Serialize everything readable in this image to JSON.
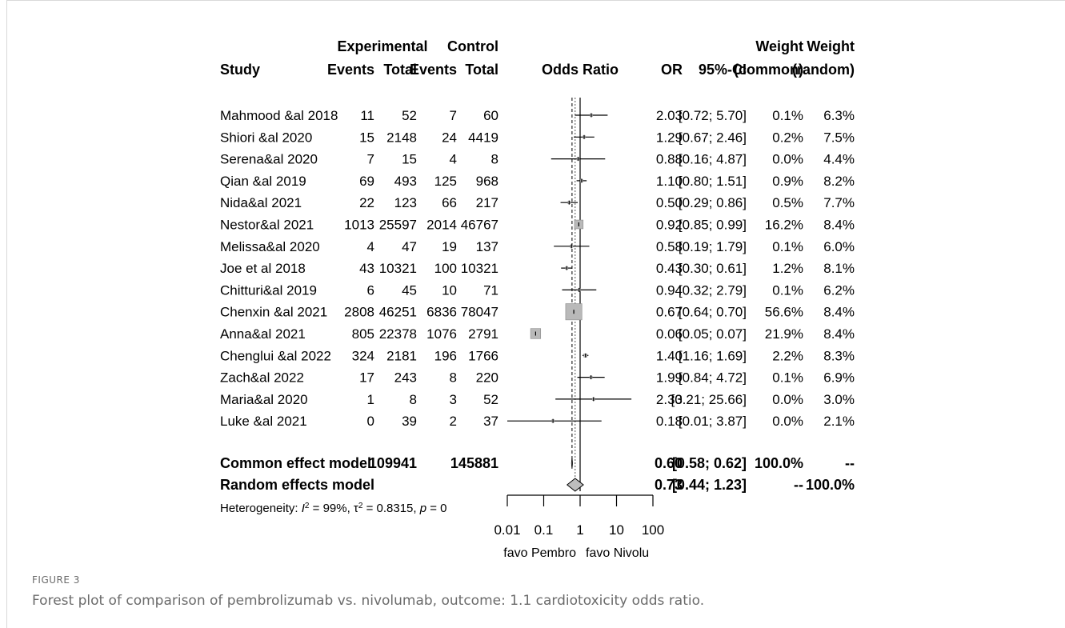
{
  "chart_data": {
    "type": "forest",
    "headers": {
      "study": "Study",
      "experimental": "Experimental",
      "control": "Control",
      "events": "Events",
      "total": "Total",
      "odds_ratio": "Odds Ratio",
      "or": "OR",
      "ci": "95%-CI",
      "weight": "Weight",
      "common": "(common)",
      "random": "(random)"
    },
    "studies": [
      {
        "name": "Mahmood &al 2018",
        "exp_events": "11",
        "exp_total": "52",
        "ctrl_events": "7",
        "ctrl_total": "60",
        "or": 2.03,
        "lo": 0.72,
        "hi": 5.7,
        "or_text": "2.03",
        "ci_text": "[0.72; 5.70]",
        "w_common": "0.1%",
        "w_random": "6.3%"
      },
      {
        "name": "Shiori &al 2020",
        "exp_events": "15",
        "exp_total": "2148",
        "ctrl_events": "24",
        "ctrl_total": "4419",
        "or": 1.29,
        "lo": 0.67,
        "hi": 2.46,
        "or_text": "1.29",
        "ci_text": "[0.67; 2.46]",
        "w_common": "0.2%",
        "w_random": "7.5%"
      },
      {
        "name": "Serena&al 2020",
        "exp_events": "7",
        "exp_total": "15",
        "ctrl_events": "4",
        "ctrl_total": "8",
        "or": 0.88,
        "lo": 0.16,
        "hi": 4.87,
        "or_text": "0.88",
        "ci_text": "[0.16; 4.87]",
        "w_common": "0.0%",
        "w_random": "4.4%"
      },
      {
        "name": "Qian &al 2019",
        "exp_events": "69",
        "exp_total": "493",
        "ctrl_events": "125",
        "ctrl_total": "968",
        "or": 1.1,
        "lo": 0.8,
        "hi": 1.51,
        "or_text": "1.10",
        "ci_text": "[0.80; 1.51]",
        "w_common": "0.9%",
        "w_random": "8.2%"
      },
      {
        "name": "Nida&al 2021",
        "exp_events": "22",
        "exp_total": "123",
        "ctrl_events": "66",
        "ctrl_total": "217",
        "or": 0.5,
        "lo": 0.29,
        "hi": 0.86,
        "or_text": "0.50",
        "ci_text": "[0.29; 0.86]",
        "w_common": "0.5%",
        "w_random": "7.7%"
      },
      {
        "name": "Nestor&al 2021",
        "exp_events": "1013",
        "exp_total": "25597",
        "ctrl_events": "2014",
        "ctrl_total": "46767",
        "or": 0.92,
        "lo": 0.85,
        "hi": 0.99,
        "or_text": "0.92",
        "ci_text": "[0.85; 0.99]",
        "w_common": "16.2%",
        "w_random": "8.4%"
      },
      {
        "name": "Melissa&al 2020",
        "exp_events": "4",
        "exp_total": "47",
        "ctrl_events": "19",
        "ctrl_total": "137",
        "or": 0.58,
        "lo": 0.19,
        "hi": 1.79,
        "or_text": "0.58",
        "ci_text": "[0.19; 1.79]",
        "w_common": "0.1%",
        "w_random": "6.0%"
      },
      {
        "name": "Joe et al 2018",
        "exp_events": "43",
        "exp_total": "10321",
        "ctrl_events": "100",
        "ctrl_total": "10321",
        "or": 0.43,
        "lo": 0.3,
        "hi": 0.61,
        "or_text": "0.43",
        "ci_text": "[0.30; 0.61]",
        "w_common": "1.2%",
        "w_random": "8.1%"
      },
      {
        "name": "Chitturi&al 2019",
        "exp_events": "6",
        "exp_total": "45",
        "ctrl_events": "10",
        "ctrl_total": "71",
        "or": 0.94,
        "lo": 0.32,
        "hi": 2.79,
        "or_text": "0.94",
        "ci_text": "[0.32; 2.79]",
        "w_common": "0.1%",
        "w_random": "6.2%"
      },
      {
        "name": "Chenxin &al 2021",
        "exp_events": "2808",
        "exp_total": "46251",
        "ctrl_events": "6836",
        "ctrl_total": "78047",
        "or": 0.67,
        "lo": 0.64,
        "hi": 0.7,
        "or_text": "0.67",
        "ci_text": "[0.64; 0.70]",
        "w_common": "56.6%",
        "w_random": "8.4%"
      },
      {
        "name": "Anna&al 2021",
        "exp_events": "805",
        "exp_total": "22378",
        "ctrl_events": "1076",
        "ctrl_total": "2791",
        "or": 0.06,
        "lo": 0.05,
        "hi": 0.07,
        "or_text": "0.06",
        "ci_text": "[0.05; 0.07]",
        "w_common": "21.9%",
        "w_random": "8.4%"
      },
      {
        "name": "Chenglui &al 2022",
        "exp_events": "324",
        "exp_total": "2181",
        "ctrl_events": "196",
        "ctrl_total": "1766",
        "or": 1.4,
        "lo": 1.16,
        "hi": 1.69,
        "or_text": "1.40",
        "ci_text": "[1.16; 1.69]",
        "w_common": "2.2%",
        "w_random": "8.3%"
      },
      {
        "name": "Zach&al 2022",
        "exp_events": "17",
        "exp_total": "243",
        "ctrl_events": "8",
        "ctrl_total": "220",
        "or": 1.99,
        "lo": 0.84,
        "hi": 4.72,
        "or_text": "1.99",
        "ci_text": "[0.84; 4.72]",
        "w_common": "0.1%",
        "w_random": "6.9%"
      },
      {
        "name": "Maria&al 2020",
        "exp_events": "1",
        "exp_total": "8",
        "ctrl_events": "3",
        "ctrl_total": "52",
        "or": 2.33,
        "lo": 0.21,
        "hi": 25.66,
        "or_text": "2.33",
        "ci_text": "[0.21; 25.66]",
        "w_common": "0.0%",
        "w_random": "3.0%"
      },
      {
        "name": "Luke &al 2021",
        "exp_events": "0",
        "exp_total": "39",
        "ctrl_events": "2",
        "ctrl_total": "37",
        "or": 0.18,
        "lo": 0.01,
        "hi": 3.87,
        "or_text": "0.18",
        "ci_text": "[0.01; 3.87]",
        "w_common": "0.0%",
        "w_random": "2.1%"
      }
    ],
    "models": [
      {
        "name": "Common effect model",
        "exp_total": "109941",
        "ctrl_total": "145881",
        "or": 0.6,
        "lo": 0.58,
        "hi": 0.62,
        "or_text": "0.60",
        "ci_text": "[0.58; 0.62]",
        "w_common": "100.0%",
        "w_random": "--"
      },
      {
        "name": "Random effects model",
        "exp_total": "",
        "ctrl_total": "",
        "or": 0.73,
        "lo": 0.44,
        "hi": 1.23,
        "or_text": "0.73",
        "ci_text": "[0.44; 1.23]",
        "w_common": "--",
        "w_random": "100.0%"
      }
    ],
    "heterogeneity": {
      "prefix": "Heterogeneity: ",
      "i2": "99%",
      "tau2": "0.8315",
      "p": "0"
    },
    "x_scale": "log",
    "x_ticks": [
      0.01,
      0.1,
      1,
      10,
      100
    ],
    "x_tick_labels": [
      "0.01",
      "0.1",
      "1",
      "10",
      "100"
    ],
    "xlim": [
      0.01,
      100
    ],
    "favours_left": "favo Pembro",
    "favours_right": "favo Nivolu",
    "marker_color": "#b9b9b9"
  },
  "figure": {
    "label": "FIGURE 3",
    "caption": "Forest plot of comparison of pembrolizumab vs. nivolumab, outcome: 1.1 cardiotoxicity odds ratio."
  }
}
